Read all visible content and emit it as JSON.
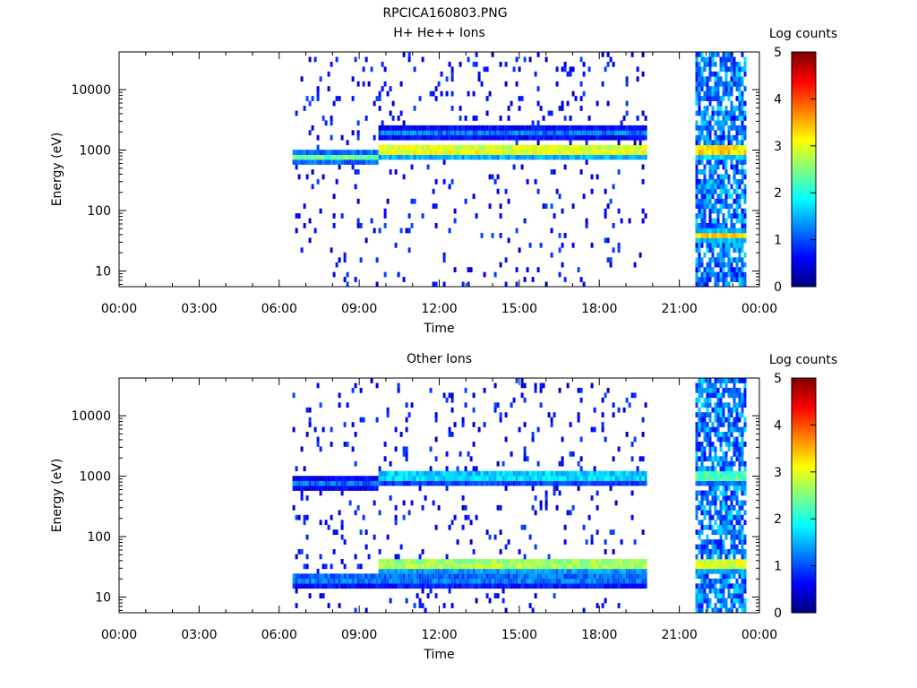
{
  "figure_title": "RPCICA160803.PNG",
  "colors": {
    "axis": "#000000",
    "background": "#ffffff"
  },
  "chart_data": [
    {
      "type": "heatmap",
      "title": "H+ He++ Ions",
      "xlabel": "Time",
      "ylabel": "Energy (eV)",
      "x_ticks": [
        "00:00",
        "03:00",
        "06:00",
        "09:00",
        "12:00",
        "15:00",
        "18:00",
        "21:00",
        "00:00"
      ],
      "x_range_hours": [
        0,
        24
      ],
      "y_scale": "log",
      "y_ticks": [
        "10",
        "100",
        "1000",
        "10000"
      ],
      "y_range": [
        5.5,
        42000
      ],
      "colorbar": {
        "label": "Log counts",
        "ticks": [
          "0",
          "1",
          "2",
          "3",
          "4",
          "5"
        ],
        "range": [
          0,
          5
        ]
      },
      "data_intervals_hours": [
        [
          6.5,
          19.7
        ],
        [
          21.6,
          23.5
        ]
      ],
      "features": [
        {
          "band_energy_eV": 800,
          "from_h": 6.5,
          "to_h": 9.7,
          "log_counts": 2.5
        },
        {
          "band_energy_eV": 1000,
          "from_h": 9.7,
          "to_h": 19.7,
          "log_counts": 3.3
        },
        {
          "band_energy_eV": 2000,
          "from_h": 9.7,
          "to_h": 19.7,
          "log_counts": 1.3
        },
        {
          "band_energy_eV": 1000,
          "from_h": 21.6,
          "to_h": 23.5,
          "log_counts": 3.6
        },
        {
          "band_energy_eV": 40,
          "from_h": 21.6,
          "to_h": 23.5,
          "log_counts": 3.4
        }
      ]
    },
    {
      "type": "heatmap",
      "title": "Other Ions",
      "xlabel": "Time",
      "ylabel": "Energy (eV)",
      "x_ticks": [
        "00:00",
        "03:00",
        "06:00",
        "09:00",
        "12:00",
        "15:00",
        "18:00",
        "21:00",
        "00:00"
      ],
      "x_range_hours": [
        0,
        24
      ],
      "y_scale": "log",
      "y_ticks": [
        "10",
        "100",
        "1000",
        "10000"
      ],
      "y_range": [
        5.5,
        42000
      ],
      "colorbar": {
        "label": "Log counts",
        "ticks": [
          "0",
          "1",
          "2",
          "3",
          "4",
          "5"
        ],
        "range": [
          0,
          5
        ]
      },
      "data_intervals_hours": [
        [
          6.5,
          19.7
        ],
        [
          21.6,
          23.5
        ]
      ],
      "features": [
        {
          "band_energy_eV": 750,
          "from_h": 6.5,
          "to_h": 9.7,
          "log_counts": 1.2
        },
        {
          "band_energy_eV": 1000,
          "from_h": 9.7,
          "to_h": 19.7,
          "log_counts": 2.0
        },
        {
          "band_energy_eV": 35,
          "from_h": 9.7,
          "to_h": 19.7,
          "log_counts": 3.0
        },
        {
          "band_energy_eV": 20,
          "from_h": 6.5,
          "to_h": 19.7,
          "log_counts": 1.5
        },
        {
          "band_energy_eV": 1000,
          "from_h": 21.6,
          "to_h": 23.5,
          "log_counts": 2.6
        },
        {
          "band_energy_eV": 35,
          "from_h": 21.6,
          "to_h": 23.5,
          "log_counts": 3.3
        }
      ]
    }
  ]
}
